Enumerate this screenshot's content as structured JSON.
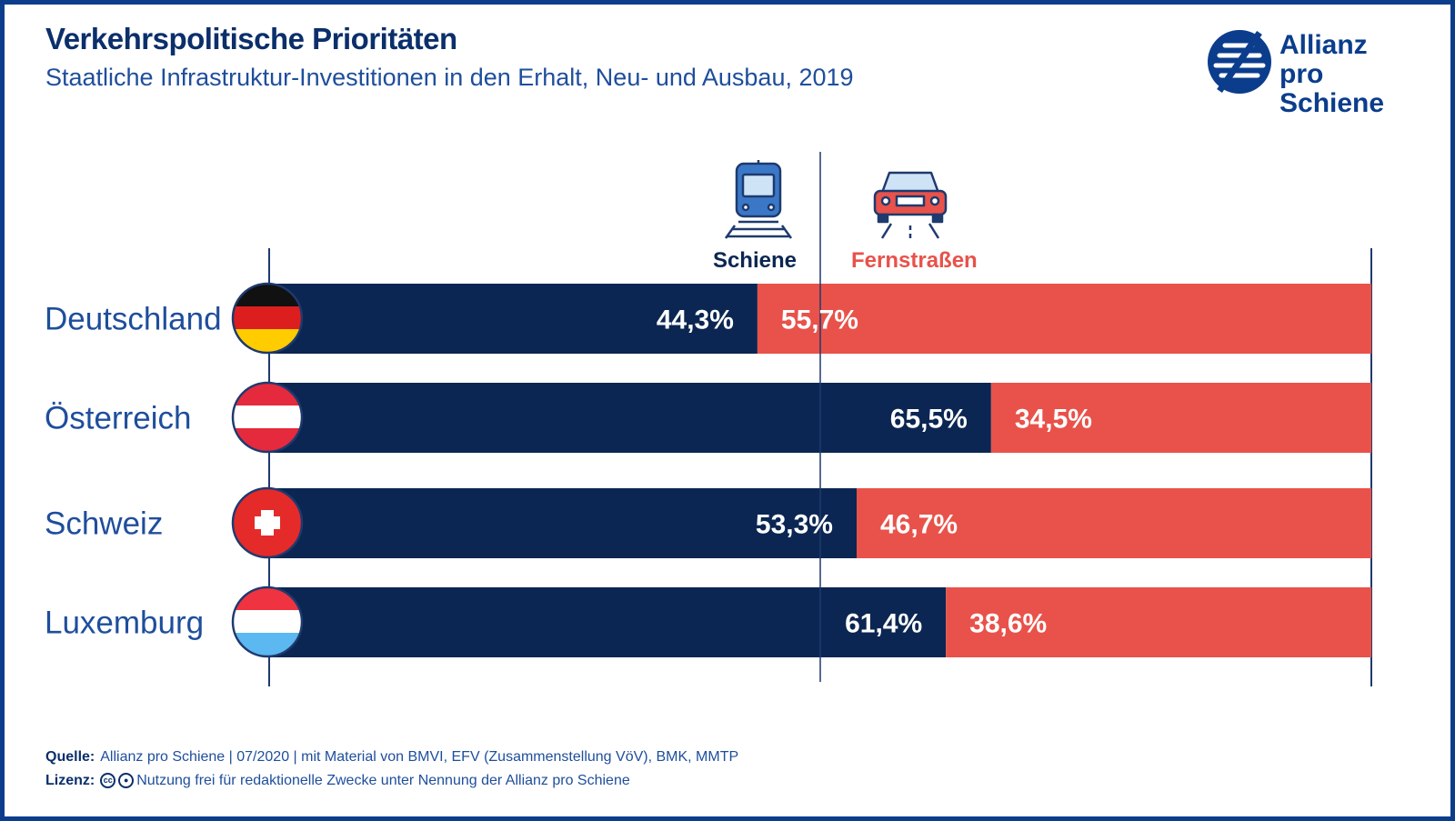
{
  "header": {
    "title": "Verkehrspolitische Prioritäten",
    "subtitle": "Staatliche Infrastruktur-Investitionen in den Erhalt, Neu- und Ausbau, 2019"
  },
  "logo": {
    "line1": "Allianz",
    "line2": "pro Schiene"
  },
  "colors": {
    "schiene": "#0b2652",
    "fernstrassen": "#e8524a",
    "frame": "#0b3d8c",
    "label": "#1e4e9c"
  },
  "icons": {
    "schiene": "train-icon",
    "fernstrassen": "car-icon"
  },
  "chart_data": {
    "type": "bar",
    "stacked": true,
    "percent": true,
    "categories": [
      "Deutschland",
      "Österreich",
      "Schweiz",
      "Luxemburg"
    ],
    "series": [
      {
        "name": "Schiene",
        "values": [
          44.3,
          65.5,
          53.3,
          61.4
        ],
        "labels": [
          "44,3%",
          "65,5%",
          "53,3%",
          "61,4%"
        ]
      },
      {
        "name": "Fernstraßen",
        "values": [
          55.7,
          34.5,
          46.7,
          38.6
        ],
        "labels": [
          "55,7%",
          "34,5%",
          "46,7%",
          "38,6%"
        ]
      }
    ],
    "flags": [
      "germany-flag-icon",
      "austria-flag-icon",
      "switzerland-flag-icon",
      "luxembourg-flag-icon"
    ],
    "xlim": [
      0,
      100
    ],
    "reference_line": 50
  },
  "footer": {
    "source_label": "Quelle:",
    "source_text": "Allianz pro Schiene | 07/2020 | mit Material von BMVI, EFV (Zusammenstellung VöV), BMK, MMTP",
    "license_label": "Lizenz:",
    "license_text": "Nutzung frei für redaktionelle Zwecke unter Nennung der Allianz pro Schiene"
  }
}
